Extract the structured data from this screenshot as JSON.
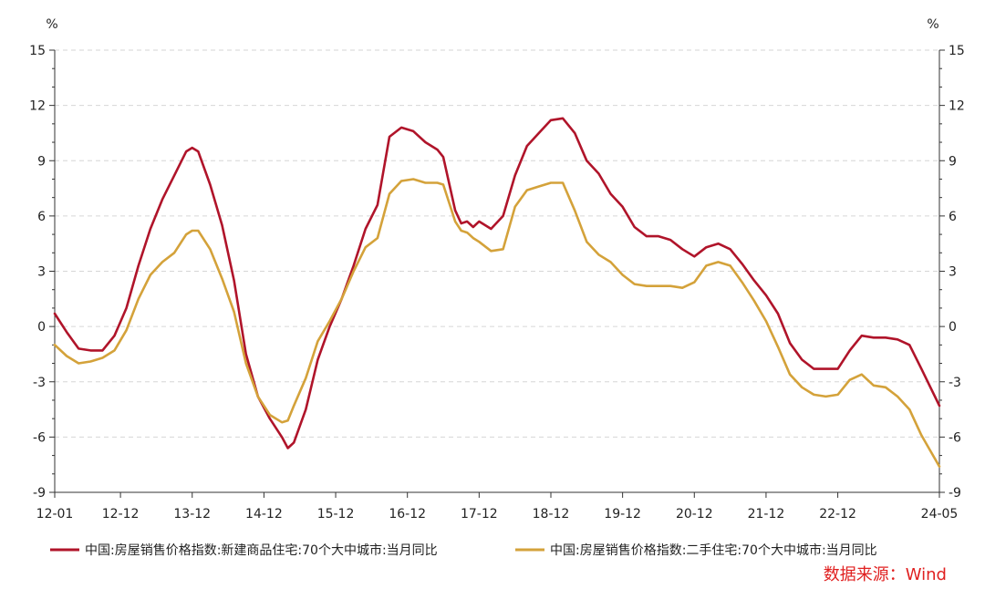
{
  "chart_data": {
    "type": "line",
    "y_unit_left": "%",
    "y_unit_right": "%",
    "ylim": [
      -9,
      15
    ],
    "yticks": [
      -9,
      -6,
      -3,
      0,
      3,
      6,
      9,
      12,
      15
    ],
    "ytick_labels": [
      "-9",
      "-6",
      "-3",
      "0",
      "3",
      "6",
      "9",
      "12",
      "15"
    ],
    "xlim": [
      "2012-01",
      "2024-05"
    ],
    "xticks": [
      "2012-01",
      "2012-12",
      "2013-12",
      "2014-12",
      "2015-12",
      "2016-12",
      "2017-12",
      "2018-12",
      "2019-12",
      "2020-12",
      "2021-12",
      "2022-12",
      "2024-05"
    ],
    "xtick_labels": [
      "12-01",
      "12-12",
      "13-12",
      "14-12",
      "15-12",
      "16-12",
      "17-12",
      "18-12",
      "19-12",
      "20-12",
      "21-12",
      "22-12",
      "24-05"
    ],
    "grid": {
      "horizontal": true,
      "style": "dashed"
    },
    "legend_position": "bottom",
    "series": [
      {
        "name": "中国:房屋销售价格指数:新建商品住宅:70个大中城市:当月同比",
        "color": "#B0142A",
        "points": [
          [
            "2012-01",
            0.7
          ],
          [
            "2012-03",
            -0.3
          ],
          [
            "2012-05",
            -1.2
          ],
          [
            "2012-07",
            -1.3
          ],
          [
            "2012-09",
            -1.3
          ],
          [
            "2012-11",
            -0.5
          ],
          [
            "2013-01",
            1.0
          ],
          [
            "2013-03",
            3.3
          ],
          [
            "2013-05",
            5.3
          ],
          [
            "2013-07",
            6.9
          ],
          [
            "2013-09",
            8.2
          ],
          [
            "2013-11",
            9.5
          ],
          [
            "2013-12",
            9.7
          ],
          [
            "2014-01",
            9.5
          ],
          [
            "2014-03",
            7.7
          ],
          [
            "2014-05",
            5.5
          ],
          [
            "2014-07",
            2.5
          ],
          [
            "2014-09",
            -1.5
          ],
          [
            "2014-11",
            -3.8
          ],
          [
            "2015-01",
            -5.0
          ],
          [
            "2015-03",
            -6.0
          ],
          [
            "2015-04",
            -6.6
          ],
          [
            "2015-05",
            -6.3
          ],
          [
            "2015-07",
            -4.5
          ],
          [
            "2015-09",
            -1.8
          ],
          [
            "2015-11",
            0.0
          ],
          [
            "2016-01",
            1.5
          ],
          [
            "2016-03",
            3.3
          ],
          [
            "2016-05",
            5.3
          ],
          [
            "2016-07",
            6.6
          ],
          [
            "2016-09",
            10.3
          ],
          [
            "2016-11",
            10.8
          ],
          [
            "2017-01",
            10.6
          ],
          [
            "2017-03",
            10.0
          ],
          [
            "2017-05",
            9.6
          ],
          [
            "2017-06",
            9.2
          ],
          [
            "2017-08",
            6.3
          ],
          [
            "2017-09",
            5.6
          ],
          [
            "2017-10",
            5.7
          ],
          [
            "2017-11",
            5.4
          ],
          [
            "2017-12",
            5.7
          ],
          [
            "2018-02",
            5.3
          ],
          [
            "2018-04",
            6.0
          ],
          [
            "2018-06",
            8.2
          ],
          [
            "2018-08",
            9.8
          ],
          [
            "2018-10",
            10.5
          ],
          [
            "2018-12",
            11.2
          ],
          [
            "2019-02",
            11.3
          ],
          [
            "2019-04",
            10.5
          ],
          [
            "2019-06",
            9.0
          ],
          [
            "2019-08",
            8.3
          ],
          [
            "2019-10",
            7.2
          ],
          [
            "2019-12",
            6.5
          ],
          [
            "2020-02",
            5.4
          ],
          [
            "2020-04",
            4.9
          ],
          [
            "2020-06",
            4.9
          ],
          [
            "2020-08",
            4.7
          ],
          [
            "2020-10",
            4.2
          ],
          [
            "2020-12",
            3.8
          ],
          [
            "2021-02",
            4.3
          ],
          [
            "2021-04",
            4.5
          ],
          [
            "2021-06",
            4.2
          ],
          [
            "2021-08",
            3.4
          ],
          [
            "2021-10",
            2.5
          ],
          [
            "2021-12",
            1.7
          ],
          [
            "2022-02",
            0.7
          ],
          [
            "2022-04",
            -0.9
          ],
          [
            "2022-06",
            -1.8
          ],
          [
            "2022-08",
            -2.3
          ],
          [
            "2022-10",
            -2.3
          ],
          [
            "2022-12",
            -2.3
          ],
          [
            "2023-02",
            -1.3
          ],
          [
            "2023-04",
            -0.5
          ],
          [
            "2023-06",
            -0.6
          ],
          [
            "2023-08",
            -0.6
          ],
          [
            "2023-10",
            -0.7
          ],
          [
            "2023-12",
            -1.0
          ],
          [
            "2024-02",
            -2.3
          ],
          [
            "2024-05",
            -4.3
          ]
        ]
      },
      {
        "name": "中国:房屋销售价格指数:二手住宅:70个大中城市:当月同比",
        "color": "#D4A23A",
        "points": [
          [
            "2012-01",
            -1.0
          ],
          [
            "2012-03",
            -1.6
          ],
          [
            "2012-05",
            -2.0
          ],
          [
            "2012-07",
            -1.9
          ],
          [
            "2012-09",
            -1.7
          ],
          [
            "2012-11",
            -1.3
          ],
          [
            "2013-01",
            -0.2
          ],
          [
            "2013-03",
            1.5
          ],
          [
            "2013-05",
            2.8
          ],
          [
            "2013-07",
            3.5
          ],
          [
            "2013-09",
            4.0
          ],
          [
            "2013-11",
            5.0
          ],
          [
            "2013-12",
            5.2
          ],
          [
            "2014-01",
            5.2
          ],
          [
            "2014-03",
            4.2
          ],
          [
            "2014-05",
            2.6
          ],
          [
            "2014-07",
            0.8
          ],
          [
            "2014-09",
            -2.0
          ],
          [
            "2014-11",
            -3.8
          ],
          [
            "2015-01",
            -4.8
          ],
          [
            "2015-03",
            -5.2
          ],
          [
            "2015-04",
            -5.1
          ],
          [
            "2015-05",
            -4.3
          ],
          [
            "2015-07",
            -2.8
          ],
          [
            "2015-09",
            -0.8
          ],
          [
            "2015-11",
            0.3
          ],
          [
            "2016-01",
            1.5
          ],
          [
            "2016-03",
            3.0
          ],
          [
            "2016-05",
            4.3
          ],
          [
            "2016-07",
            4.8
          ],
          [
            "2016-09",
            7.2
          ],
          [
            "2016-11",
            7.9
          ],
          [
            "2017-01",
            8.0
          ],
          [
            "2017-03",
            7.8
          ],
          [
            "2017-05",
            7.8
          ],
          [
            "2017-06",
            7.7
          ],
          [
            "2017-08",
            5.7
          ],
          [
            "2017-09",
            5.2
          ],
          [
            "2017-10",
            5.1
          ],
          [
            "2017-11",
            4.8
          ],
          [
            "2017-12",
            4.6
          ],
          [
            "2018-02",
            4.1
          ],
          [
            "2018-04",
            4.2
          ],
          [
            "2018-06",
            6.5
          ],
          [
            "2018-08",
            7.4
          ],
          [
            "2018-10",
            7.6
          ],
          [
            "2018-12",
            7.8
          ],
          [
            "2019-02",
            7.8
          ],
          [
            "2019-04",
            6.3
          ],
          [
            "2019-06",
            4.6
          ],
          [
            "2019-08",
            3.9
          ],
          [
            "2019-10",
            3.5
          ],
          [
            "2019-12",
            2.8
          ],
          [
            "2020-02",
            2.3
          ],
          [
            "2020-04",
            2.2
          ],
          [
            "2020-06",
            2.2
          ],
          [
            "2020-08",
            2.2
          ],
          [
            "2020-10",
            2.1
          ],
          [
            "2020-12",
            2.4
          ],
          [
            "2021-02",
            3.3
          ],
          [
            "2021-04",
            3.5
          ],
          [
            "2021-06",
            3.3
          ],
          [
            "2021-08",
            2.4
          ],
          [
            "2021-10",
            1.4
          ],
          [
            "2021-12",
            0.3
          ],
          [
            "2022-02",
            -1.1
          ],
          [
            "2022-04",
            -2.6
          ],
          [
            "2022-06",
            -3.3
          ],
          [
            "2022-08",
            -3.7
          ],
          [
            "2022-10",
            -3.8
          ],
          [
            "2022-12",
            -3.7
          ],
          [
            "2023-02",
            -2.9
          ],
          [
            "2023-04",
            -2.6
          ],
          [
            "2023-06",
            -3.2
          ],
          [
            "2023-08",
            -3.3
          ],
          [
            "2023-10",
            -3.8
          ],
          [
            "2023-12",
            -4.5
          ],
          [
            "2024-02",
            -5.9
          ],
          [
            "2024-05",
            -7.6
          ]
        ]
      }
    ]
  },
  "source_label": "数据来源：Wind",
  "source_color": "#E02020"
}
